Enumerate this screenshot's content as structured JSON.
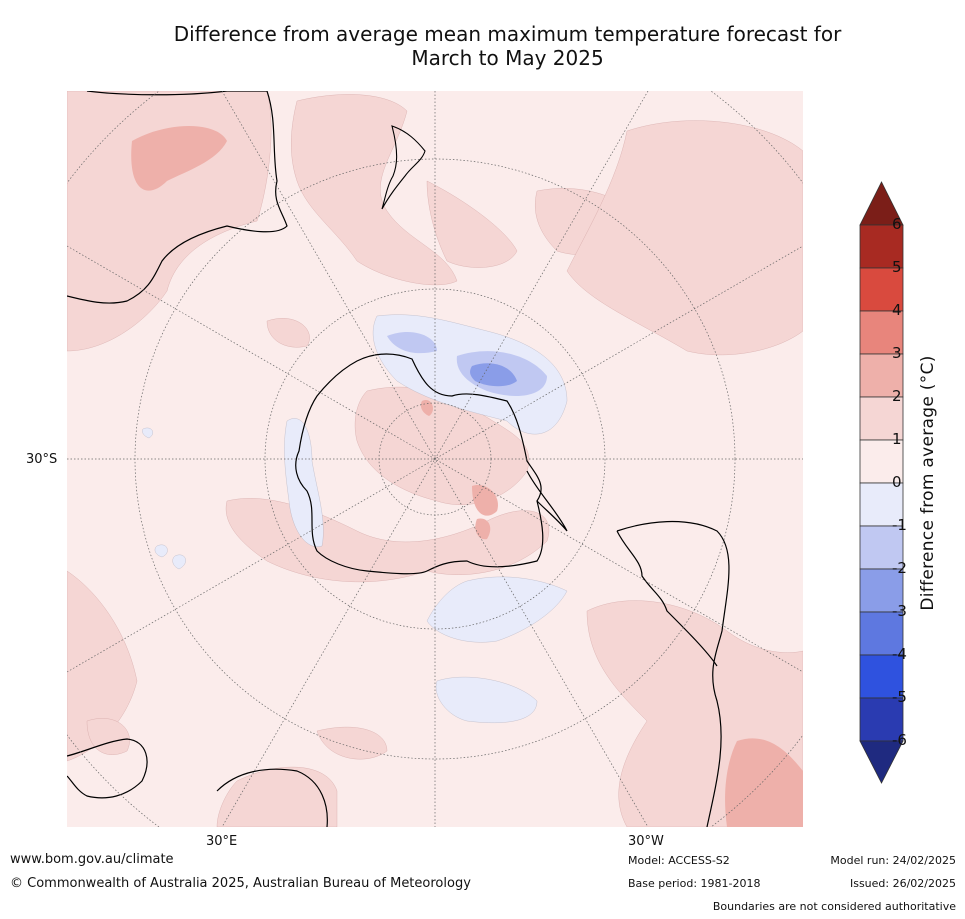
{
  "title_line1": "Difference from average mean maximum temperature forecast for",
  "title_line2": "March to May 2025",
  "map": {
    "projection": "south-polar-stereographic",
    "lat_label_left": "30°S",
    "lon_label_left": "30°E",
    "lon_label_right": "30°W",
    "features": [
      "Antarctica",
      "Australia",
      "New Zealand",
      "South America",
      "Southern Africa"
    ]
  },
  "colorbar": {
    "label": "Difference from average (°C)",
    "ticks": [
      "6",
      "5",
      "4",
      "3",
      "2",
      "1",
      "0",
      "-1",
      "-2",
      "-3",
      "-4",
      "-5",
      "-6"
    ],
    "colors": {
      "gt6": "#7b1e18",
      "5_6": "#a82a22",
      "4_5": "#d94a3e",
      "3_4": "#e8857c",
      "2_3": "#eeb0aa",
      "1_2": "#f5d6d4",
      "0_1": "#fbeceb",
      "m1_0": "#e8ebfa",
      "m2_m1": "#c0c8f2",
      "m3_m2": "#8a9de8",
      "m4_m3": "#5e78e0",
      "m5_m4": "#2f52df",
      "m6_m5": "#2a3bb1",
      "lt_m6": "#1f2a80"
    }
  },
  "footer": {
    "url": "www.bom.gov.au/climate",
    "copyright": "© Commonwealth of Australia 2025, Australian Bureau of Meteorology",
    "model": "Model: ACCESS-S2",
    "base_period": "Base period: 1981-2018",
    "model_run": "Model run: 24/02/2025",
    "issued": "Issued: 26/02/2025",
    "disclaimer": "Boundaries are not considered authoritative"
  }
}
